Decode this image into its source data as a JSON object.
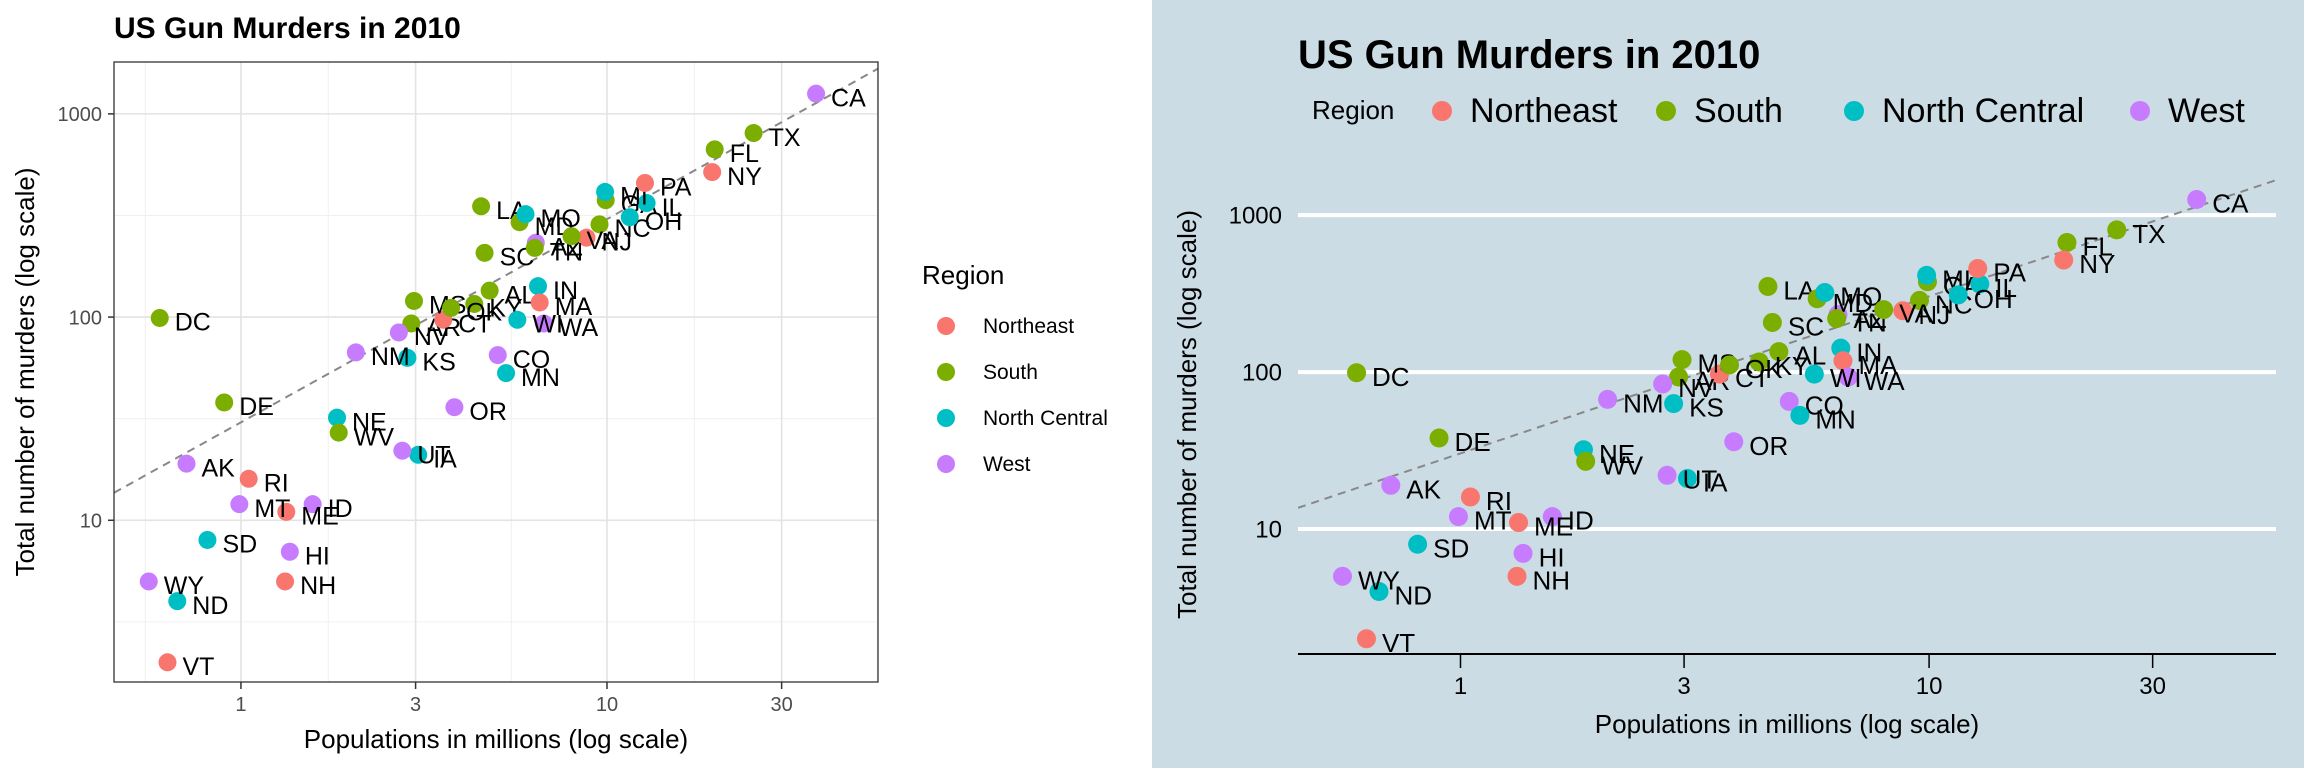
{
  "chart_data": [
    {
      "type": "scatter",
      "title": "US Gun Murders in 2010",
      "xlabel": "Populations in millions (log scale)",
      "ylabel": "Total number of murders (log scale)",
      "x_scale": "log10",
      "y_scale": "log10",
      "x_ticks": [
        "1",
        "3",
        "10",
        "30"
      ],
      "y_ticks": [
        "10",
        "100",
        "1000"
      ],
      "legend_title": "Region",
      "legend_position": "right",
      "theme": "bw",
      "reference_line": "dashed grey, slope 1 through the overall murder rate"
    },
    {
      "type": "scatter",
      "title": "US Gun Murders in 2010",
      "xlabel": "Populations in millions (log scale)",
      "ylabel": "Total number of murders (log scale)",
      "x_scale": "log10",
      "y_scale": "log10",
      "x_ticks": [
        "1",
        "3",
        "10",
        "30"
      ],
      "y_ticks": [
        "10",
        "100",
        "1000"
      ],
      "legend_title": "Region",
      "legend_position": "top",
      "theme": "economist",
      "reference_line": "dashed grey, slope 1 through the overall murder rate"
    }
  ],
  "regions": [
    {
      "name": "Northeast",
      "color": "#F8766D"
    },
    {
      "name": "South",
      "color": "#7CAE00"
    },
    {
      "name": "North Central",
      "color": "#00BFC4"
    },
    {
      "name": "West",
      "color": "#C77CFF"
    }
  ],
  "points": [
    {
      "abb": "AL",
      "region": "South",
      "pop_millions": 4.78,
      "murders": 135
    },
    {
      "abb": "AK",
      "region": "West",
      "pop_millions": 0.71,
      "murders": 19
    },
    {
      "abb": "AZ",
      "region": "West",
      "pop_millions": 6.39,
      "murders": 232
    },
    {
      "abb": "AR",
      "region": "South",
      "pop_millions": 2.92,
      "murders": 93
    },
    {
      "abb": "CA",
      "region": "West",
      "pop_millions": 37.25,
      "murders": 1257
    },
    {
      "abb": "CO",
      "region": "West",
      "pop_millions": 5.03,
      "murders": 65
    },
    {
      "abb": "CT",
      "region": "Northeast",
      "pop_millions": 3.57,
      "murders": 97
    },
    {
      "abb": "DE",
      "region": "South",
      "pop_millions": 0.9,
      "murders": 38
    },
    {
      "abb": "DC",
      "region": "South",
      "pop_millions": 0.6,
      "murders": 99
    },
    {
      "abb": "FL",
      "region": "South",
      "pop_millions": 19.69,
      "murders": 669
    },
    {
      "abb": "GA",
      "region": "South",
      "pop_millions": 9.92,
      "murders": 376
    },
    {
      "abb": "HI",
      "region": "West",
      "pop_millions": 1.36,
      "murders": 7
    },
    {
      "abb": "ID",
      "region": "West",
      "pop_millions": 1.57,
      "murders": 12
    },
    {
      "abb": "IL",
      "region": "North Central",
      "pop_millions": 12.83,
      "murders": 364
    },
    {
      "abb": "IN",
      "region": "North Central",
      "pop_millions": 6.48,
      "murders": 142
    },
    {
      "abb": "IA",
      "region": "North Central",
      "pop_millions": 3.05,
      "murders": 21
    },
    {
      "abb": "KS",
      "region": "North Central",
      "pop_millions": 2.85,
      "murders": 63
    },
    {
      "abb": "KY",
      "region": "South",
      "pop_millions": 4.34,
      "murders": 116
    },
    {
      "abb": "LA",
      "region": "South",
      "pop_millions": 4.53,
      "murders": 351
    },
    {
      "abb": "ME",
      "region": "Northeast",
      "pop_millions": 1.33,
      "murders": 11
    },
    {
      "abb": "MD",
      "region": "South",
      "pop_millions": 5.77,
      "murders": 293
    },
    {
      "abb": "MA",
      "region": "Northeast",
      "pop_millions": 6.55,
      "murders": 118
    },
    {
      "abb": "MI",
      "region": "North Central",
      "pop_millions": 9.88,
      "murders": 413
    },
    {
      "abb": "MN",
      "region": "North Central",
      "pop_millions": 5.3,
      "murders": 53
    },
    {
      "abb": "MS",
      "region": "South",
      "pop_millions": 2.97,
      "murders": 120
    },
    {
      "abb": "MO",
      "region": "North Central",
      "pop_millions": 5.99,
      "murders": 321
    },
    {
      "abb": "MT",
      "region": "West",
      "pop_millions": 0.99,
      "murders": 12
    },
    {
      "abb": "NE",
      "region": "North Central",
      "pop_millions": 1.83,
      "murders": 32
    },
    {
      "abb": "NV",
      "region": "West",
      "pop_millions": 2.7,
      "murders": 84
    },
    {
      "abb": "NH",
      "region": "Northeast",
      "pop_millions": 1.32,
      "murders": 5
    },
    {
      "abb": "NJ",
      "region": "Northeast",
      "pop_millions": 8.79,
      "murders": 246
    },
    {
      "abb": "NM",
      "region": "West",
      "pop_millions": 2.06,
      "murders": 67
    },
    {
      "abb": "NY",
      "region": "Northeast",
      "pop_millions": 19.38,
      "murders": 517
    },
    {
      "abb": "NC",
      "region": "South",
      "pop_millions": 9.54,
      "murders": 286
    },
    {
      "abb": "ND",
      "region": "North Central",
      "pop_millions": 0.67,
      "murders": 4
    },
    {
      "abb": "OH",
      "region": "North Central",
      "pop_millions": 11.54,
      "murders": 310
    },
    {
      "abb": "OK",
      "region": "South",
      "pop_millions": 3.75,
      "murders": 111
    },
    {
      "abb": "OR",
      "region": "West",
      "pop_millions": 3.83,
      "murders": 36
    },
    {
      "abb": "PA",
      "region": "Northeast",
      "pop_millions": 12.7,
      "murders": 457
    },
    {
      "abb": "RI",
      "region": "Northeast",
      "pop_millions": 1.05,
      "murders": 16
    },
    {
      "abb": "SC",
      "region": "South",
      "pop_millions": 4.63,
      "murders": 207
    },
    {
      "abb": "SD",
      "region": "North Central",
      "pop_millions": 0.81,
      "murders": 8
    },
    {
      "abb": "TN",
      "region": "South",
      "pop_millions": 6.35,
      "murders": 219
    },
    {
      "abb": "TX",
      "region": "South",
      "pop_millions": 25.15,
      "murders": 805
    },
    {
      "abb": "UT",
      "region": "West",
      "pop_millions": 2.76,
      "murders": 22
    },
    {
      "abb": "VT",
      "region": "Northeast",
      "pop_millions": 0.63,
      "murders": 2
    },
    {
      "abb": "VA",
      "region": "South",
      "pop_millions": 8.0,
      "murders": 250
    },
    {
      "abb": "WA",
      "region": "West",
      "pop_millions": 6.72,
      "murders": 93
    },
    {
      "abb": "WV",
      "region": "South",
      "pop_millions": 1.85,
      "murders": 27
    },
    {
      "abb": "WI",
      "region": "North Central",
      "pop_millions": 5.69,
      "murders": 97
    },
    {
      "abb": "WY",
      "region": "West",
      "pop_millions": 0.56,
      "murders": 5
    }
  ]
}
